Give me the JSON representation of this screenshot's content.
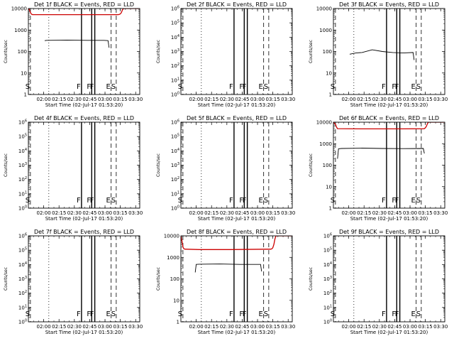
{
  "figure": {
    "xlabel": "Start Time (02-Jul-17 01:53:20)",
    "ylabel": "Counts/sec",
    "x_ticks": [
      "02:00",
      "02:15",
      "02:30",
      "02:45",
      "03:00",
      "03:15",
      "03:30"
    ],
    "x_range_minutes": [
      -8,
      101
    ],
    "colors": {
      "events": "#000000",
      "lld": "#cc0000"
    }
  },
  "chart_data": [
    {
      "type": "line",
      "title": "Det 1f BLACK = Events, RED = LLD",
      "yscale": "log",
      "ylim": [
        1,
        10000
      ],
      "y_ticks": [
        "1",
        "10",
        "100",
        "1000",
        "10000"
      ],
      "series": [
        {
          "name": "Events",
          "x": [
            8,
            10,
            30,
            50,
            66,
            70,
            71
          ],
          "y": [
            320,
            330,
            340,
            330,
            330,
            320,
            150
          ]
        },
        {
          "name": "LLD",
          "x": [
            -8,
            -7,
            -6,
            -5,
            -4,
            80,
            81,
            82,
            83,
            84,
            85,
            101
          ],
          "y": [
            10000,
            9000,
            6500,
            5500,
            5200,
            5200,
            5300,
            5600,
            6500,
            8500,
            10000,
            10000
          ]
        }
      ],
      "markers": [
        {
          "label": "S",
          "style": "dashed",
          "minutes": -6
        },
        {
          "label": "",
          "style": "dotted",
          "minutes": 12
        },
        {
          "label": "F",
          "style": "solid",
          "minutes": 44
        },
        {
          "label": "F",
          "style": "solid",
          "minutes": 54
        },
        {
          "label": "F",
          "style": "solid",
          "minutes": 57
        },
        {
          "label": "E",
          "style": "dashed",
          "minutes": 73
        },
        {
          "label": "S",
          "style": "dashed",
          "minutes": 78
        }
      ]
    },
    {
      "type": "line",
      "title": "Det 2f BLACK = Events, RED = LLD",
      "yscale": "log",
      "ylim": [
        1,
        1000000
      ],
      "y_ticks": [
        "10^0",
        "10^1",
        "10^2",
        "10^3",
        "10^4",
        "10^5",
        "10^6"
      ],
      "series": [],
      "markers": [
        {
          "label": "S",
          "style": "dashed",
          "minutes": -6
        },
        {
          "label": "",
          "style": "dotted",
          "minutes": 12
        },
        {
          "label": "F",
          "style": "solid",
          "minutes": 44
        },
        {
          "label": "F",
          "style": "solid",
          "minutes": 54
        },
        {
          "label": "F",
          "style": "solid",
          "minutes": 57
        },
        {
          "label": "E",
          "style": "dashed",
          "minutes": 73
        },
        {
          "label": "S",
          "style": "dashed",
          "minutes": 78
        }
      ]
    },
    {
      "type": "line",
      "title": "Det 3f BLACK = Events, RED = LLD",
      "yscale": "log",
      "ylim": [
        1,
        10000
      ],
      "y_ticks": [
        "1",
        "10",
        "100",
        "1000",
        "10000"
      ],
      "series": [
        {
          "name": "Events",
          "x": [
            8,
            14,
            20,
            30,
            40,
            50,
            60,
            70,
            71
          ],
          "y": [
            75,
            85,
            90,
            120,
            100,
            90,
            85,
            90,
            40
          ]
        }
      ],
      "markers": [
        {
          "label": "S",
          "style": "dashed",
          "minutes": -6
        },
        {
          "label": "",
          "style": "dotted",
          "minutes": 12
        },
        {
          "label": "F",
          "style": "solid",
          "minutes": 44
        },
        {
          "label": "F",
          "style": "solid",
          "minutes": 54
        },
        {
          "label": "F",
          "style": "solid",
          "minutes": 57
        },
        {
          "label": "E",
          "style": "dashed",
          "minutes": 73
        },
        {
          "label": "S",
          "style": "dashed",
          "minutes": 78
        }
      ]
    },
    {
      "type": "line",
      "title": "Det 4f BLACK = Events, RED = LLD",
      "yscale": "log",
      "ylim": [
        1,
        1000000
      ],
      "y_ticks": [
        "10^0",
        "10^1",
        "10^2",
        "10^3",
        "10^4",
        "10^5",
        "10^6"
      ],
      "series": [],
      "markers": [
        {
          "label": "S",
          "style": "dashed",
          "minutes": -6
        },
        {
          "label": "",
          "style": "dotted",
          "minutes": 12
        },
        {
          "label": "F",
          "style": "solid",
          "minutes": 44
        },
        {
          "label": "F",
          "style": "solid",
          "minutes": 54
        },
        {
          "label": "F",
          "style": "solid",
          "minutes": 57
        },
        {
          "label": "E",
          "style": "dashed",
          "minutes": 73
        },
        {
          "label": "S",
          "style": "dashed",
          "minutes": 78
        }
      ]
    },
    {
      "type": "line",
      "title": "Det 5f BLACK = Events, RED = LLD",
      "yscale": "log",
      "ylim": [
        1,
        1000000
      ],
      "y_ticks": [
        "10^0",
        "10^1",
        "10^2",
        "10^3",
        "10^4",
        "10^5",
        "10^6"
      ],
      "series": [],
      "markers": [
        {
          "label": "S",
          "style": "dashed",
          "minutes": -6
        },
        {
          "label": "",
          "style": "dotted",
          "minutes": 12
        },
        {
          "label": "F",
          "style": "solid",
          "minutes": 44
        },
        {
          "label": "F",
          "style": "solid",
          "minutes": 54
        },
        {
          "label": "F",
          "style": "solid",
          "minutes": 57
        },
        {
          "label": "E",
          "style": "dashed",
          "minutes": 73
        },
        {
          "label": "S",
          "style": "dashed",
          "minutes": 78
        }
      ]
    },
    {
      "type": "line",
      "title": "Det 6f BLACK = Events, RED = LLD",
      "yscale": "log",
      "ylim": [
        1,
        10000
      ],
      "y_ticks": [
        "1",
        "10",
        "100",
        "1000",
        "10000"
      ],
      "series": [
        {
          "name": "Events",
          "x": [
            -4,
            -3,
            0,
            20,
            40,
            60,
            80,
            81
          ],
          "y": [
            200,
            580,
            600,
            620,
            600,
            590,
            600,
            350
          ]
        },
        {
          "name": "LLD",
          "x": [
            -8,
            -6,
            -5,
            -4,
            20,
            60,
            80,
            81,
            82,
            83,
            84,
            85,
            86,
            101
          ],
          "y": [
            10000,
            8000,
            6000,
            5000,
            4900,
            4900,
            4950,
            5000,
            5500,
            6500,
            8500,
            10000,
            10000,
            10000
          ]
        }
      ],
      "markers": [
        {
          "label": "S",
          "style": "dashed",
          "minutes": -6
        },
        {
          "label": "",
          "style": "dotted",
          "minutes": 12
        },
        {
          "label": "F",
          "style": "solid",
          "minutes": 44
        },
        {
          "label": "F",
          "style": "solid",
          "minutes": 54
        },
        {
          "label": "F",
          "style": "solid",
          "minutes": 57
        },
        {
          "label": "E",
          "style": "dashed",
          "minutes": 73
        },
        {
          "label": "S",
          "style": "dashed",
          "minutes": 78
        }
      ]
    },
    {
      "type": "line",
      "title": "Det 7f BLACK = Events, RED = LLD",
      "yscale": "log",
      "ylim": [
        1,
        1000000
      ],
      "y_ticks": [
        "10^0",
        "10^1",
        "10^2",
        "10^3",
        "10^4",
        "10^5",
        "10^6"
      ],
      "series": [],
      "markers": [
        {
          "label": "S",
          "style": "dashed",
          "minutes": -6
        },
        {
          "label": "",
          "style": "dotted",
          "minutes": 12
        },
        {
          "label": "F",
          "style": "solid",
          "minutes": 44
        },
        {
          "label": "F",
          "style": "solid",
          "minutes": 54
        },
        {
          "label": "F",
          "style": "solid",
          "minutes": 57
        },
        {
          "label": "E",
          "style": "dashed",
          "minutes": 73
        },
        {
          "label": "S",
          "style": "dashed",
          "minutes": 78
        }
      ]
    },
    {
      "type": "line",
      "title": "Det 8f BLACK = Events, RED = LLD",
      "yscale": "log",
      "ylim": [
        1,
        10000
      ],
      "y_ticks": [
        "1",
        "10",
        "100",
        "1000",
        "10000"
      ],
      "series": [
        {
          "name": "Events",
          "x": [
            6,
            7,
            10,
            30,
            50,
            70,
            71
          ],
          "y": [
            200,
            470,
            480,
            490,
            470,
            470,
            220
          ]
        },
        {
          "name": "LLD",
          "x": [
            -8,
            -7,
            -6,
            -5,
            -4,
            10,
            40,
            80,
            81,
            82,
            83,
            84,
            85,
            101
          ],
          "y": [
            10000,
            6000,
            3000,
            2500,
            2400,
            2300,
            2300,
            2400,
            2500,
            2800,
            4000,
            7000,
            10000,
            10000
          ]
        }
      ],
      "markers": [
        {
          "label": "S",
          "style": "dashed",
          "minutes": -6
        },
        {
          "label": "",
          "style": "dotted",
          "minutes": 12
        },
        {
          "label": "F",
          "style": "solid",
          "minutes": 44
        },
        {
          "label": "F",
          "style": "solid",
          "minutes": 54
        },
        {
          "label": "F",
          "style": "solid",
          "minutes": 57
        },
        {
          "label": "E",
          "style": "dashed",
          "minutes": 73
        },
        {
          "label": "S",
          "style": "dashed",
          "minutes": 78
        }
      ]
    },
    {
      "type": "line",
      "title": "Det 9f BLACK = Events, RED = LLD",
      "yscale": "log",
      "ylim": [
        1,
        1000000
      ],
      "y_ticks": [
        "10^0",
        "10^1",
        "10^2",
        "10^3",
        "10^4",
        "10^5",
        "10^6"
      ],
      "series": [],
      "markers": [
        {
          "label": "S",
          "style": "dashed",
          "minutes": -6
        },
        {
          "label": "",
          "style": "dotted",
          "minutes": 12
        },
        {
          "label": "F",
          "style": "solid",
          "minutes": 44
        },
        {
          "label": "F",
          "style": "solid",
          "minutes": 54
        },
        {
          "label": "F",
          "style": "solid",
          "minutes": 57
        },
        {
          "label": "E",
          "style": "dashed",
          "minutes": 73
        },
        {
          "label": "S",
          "style": "dashed",
          "minutes": 78
        }
      ]
    }
  ]
}
